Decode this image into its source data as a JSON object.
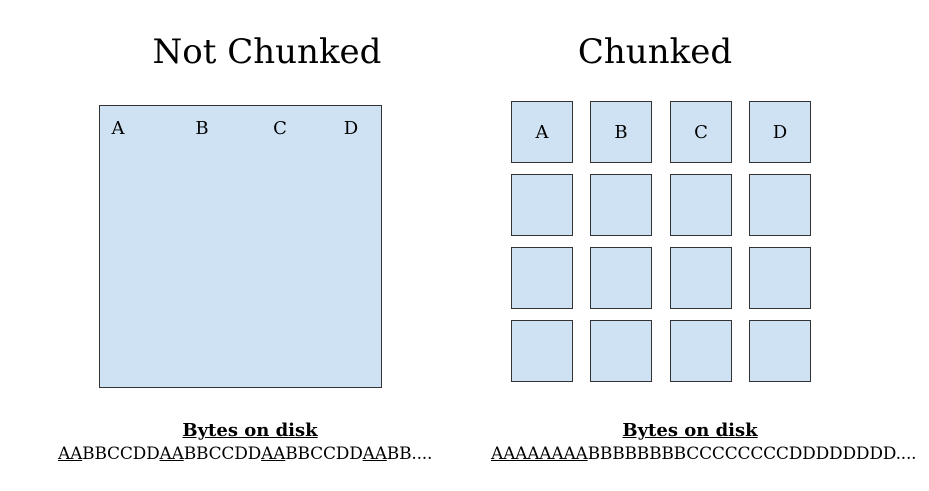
{
  "left": {
    "title": "Not Chunked",
    "columns": [
      "A",
      "B",
      "C",
      "D"
    ],
    "bytes_title": "Bytes on disk",
    "bytes_segments": [
      {
        "text": "AA",
        "underline": true
      },
      {
        "text": "BBCCDD",
        "underline": false
      },
      {
        "text": "AA",
        "underline": true
      },
      {
        "text": "BBCCDD",
        "underline": false
      },
      {
        "text": "AA",
        "underline": true
      },
      {
        "text": "BBCCDD",
        "underline": false
      },
      {
        "text": "AA",
        "underline": true
      },
      {
        "text": "BB....",
        "underline": false
      }
    ]
  },
  "right": {
    "title": "Chunked",
    "columns": [
      "A",
      "B",
      "C",
      "D"
    ],
    "rows": 4,
    "bytes_title": "Bytes on disk",
    "bytes_segments": [
      {
        "text": "AAAAAAAA",
        "underline": true
      },
      {
        "text": "BBBBBBBBCCCCCCCCDDDDDDDD....",
        "underline": false
      }
    ]
  },
  "colors": {
    "box_fill": "#cfe2f3",
    "box_border": "#333333"
  }
}
